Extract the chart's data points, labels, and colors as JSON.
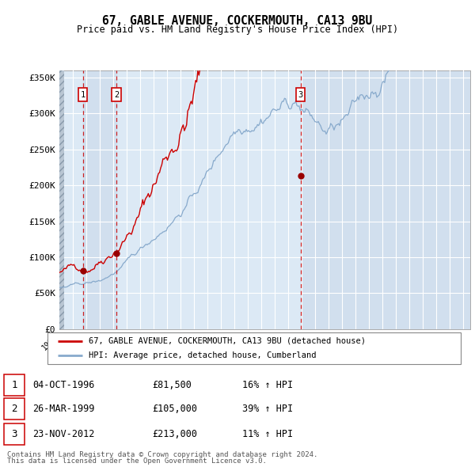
{
  "title": "67, GABLE AVENUE, COCKERMOUTH, CA13 9BU",
  "subtitle": "Price paid vs. HM Land Registry's House Price Index (HPI)",
  "ylim": [
    0,
    360000
  ],
  "yticks": [
    0,
    50000,
    100000,
    150000,
    200000,
    250000,
    300000,
    350000
  ],
  "ytick_labels": [
    "£0",
    "£50K",
    "£100K",
    "£150K",
    "£200K",
    "£250K",
    "£300K",
    "£350K"
  ],
  "sales": [
    {
      "num": 1,
      "date_x": 1996.75,
      "price": 81500
    },
    {
      "num": 2,
      "date_x": 1999.23,
      "price": 105000
    },
    {
      "num": 3,
      "date_x": 2012.9,
      "price": 213000
    }
  ],
  "legend_line1": "67, GABLE AVENUE, COCKERMOUTH, CA13 9BU (detached house)",
  "legend_line2": "HPI: Average price, detached house, Cumberland",
  "table_rows": [
    [
      "1",
      "04-OCT-1996",
      "£81,500",
      "16% ↑ HPI"
    ],
    [
      "2",
      "26-MAR-1999",
      "£105,000",
      "39% ↑ HPI"
    ],
    [
      "3",
      "23-NOV-2012",
      "£213,000",
      "11% ↑ HPI"
    ]
  ],
  "footer1": "Contains HM Land Registry data © Crown copyright and database right 2024.",
  "footer2": "This data is licensed under the Open Government Licence v3.0.",
  "xmin": 1995.0,
  "xmax": 2025.5,
  "plot_bg_color": "#dce9f5",
  "hatch_color": "#bfc9d6",
  "red_line_color": "#cc0000",
  "blue_line_color": "#88aacc",
  "marker_color": "#990000",
  "vline_color": "#cc0000",
  "grid_color": "#ffffff",
  "box_edge_color": "#cc0000",
  "shade_color": "#c8d8ea"
}
